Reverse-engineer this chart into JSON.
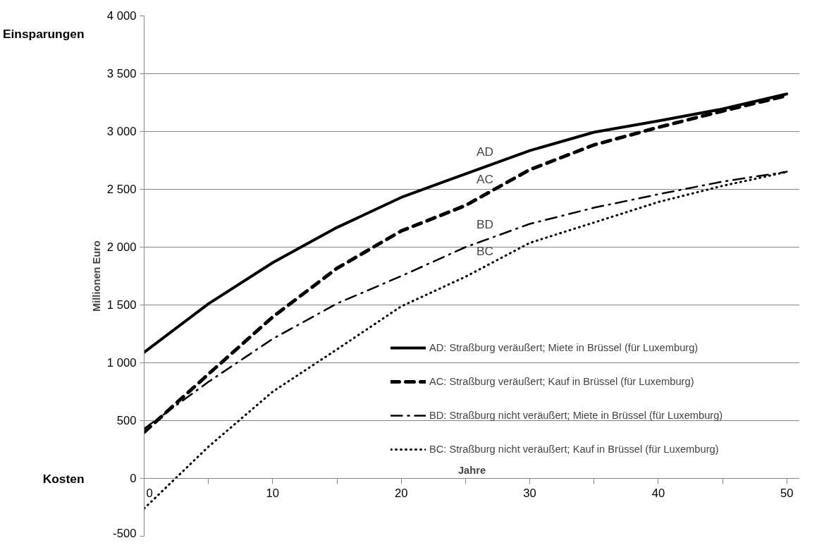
{
  "chart_data": {
    "type": "line",
    "ylabel": "Millionen Euro",
    "xlabel": "Jahre",
    "x": [
      0,
      5,
      10,
      15,
      20,
      25,
      30,
      35,
      40,
      45,
      50
    ],
    "series": [
      {
        "name": "AD: Straßburg veräußert; Miete in Brüssel (für Luxemburg)",
        "color": "#000000",
        "line_style": "solid",
        "values": [
          1090,
          1510,
          1866,
          2170,
          2430,
          2634,
          2835,
          2994,
          3091,
          3195,
          3325
        ]
      },
      {
        "name": "AC: Straßburg veräußert; Kauf in Brüssel (für Luxemburg)",
        "color": "#000000",
        "line_style": "dashed",
        "values": [
          400,
          902,
          1396,
          1817,
          2140,
          2360,
          2670,
          2884,
          3036,
          3177,
          3310
        ]
      },
      {
        "name": "BD: Straßburg nicht veräußert; Miete in Brüssel (für Luxemburg)",
        "color": "#000000",
        "line_style": "dashdot",
        "values": [
          430,
          835,
          1207,
          1512,
          1750,
          2000,
          2201,
          2341,
          2457,
          2567,
          2652
        ]
      },
      {
        "name": "BC: Straßburg nicht veräußert; Kauf in Brüssel (für Luxemburg)",
        "color": "#000000",
        "line_style": "dotted",
        "values": [
          -260,
          274,
          750,
          1116,
          1488,
          1744,
          2037,
          2213,
          2390,
          2530,
          2650
        ]
      }
    ],
    "annotations": [
      "AD",
      "AC",
      "BD",
      "BC",
      "Einsparungen",
      "Kosten"
    ],
    "xlim": [
      0,
      51
    ],
    "xticks": [
      0,
      {
        "value": 5,
        "label": null
      },
      10,
      {
        "value": 15,
        "label": null
      },
      20,
      {
        "value": 25,
        "label": null
      },
      30,
      {
        "value": 35,
        "label": null
      },
      40,
      {
        "value": 45,
        "label": null
      },
      50
    ],
    "ylim": [
      -500,
      4000
    ],
    "yticks": [
      -500,
      0,
      500,
      {
        "value": 1000,
        "label": "1 000"
      },
      {
        "value": 1500,
        "label": "1 500"
      },
      {
        "value": 2000,
        "label": "2 000"
      },
      {
        "value": 2500,
        "label": "2 500"
      },
      {
        "value": 3000,
        "label": "3 000"
      },
      {
        "value": 3500,
        "label": "3 500"
      },
      {
        "value": 4000,
        "label": "4 000"
      }
    ],
    "grid": "y",
    "legend": "right"
  }
}
